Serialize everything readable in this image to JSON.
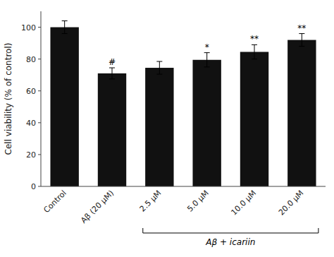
{
  "chart_data": {
    "type": "bar",
    "categories": [
      "Control",
      "Aβ (20 μM)",
      "2.5 μM",
      "5.0 μM",
      "10.0 μM",
      "20.0 μM"
    ],
    "values": [
      100.0,
      71.0,
      74.5,
      79.5,
      84.5,
      92.0
    ],
    "errors": [
      4.0,
      3.5,
      4.0,
      4.5,
      4.5,
      4.0
    ],
    "color": "#111111",
    "ylim": [
      0,
      110
    ],
    "yticks": [
      0,
      20,
      40,
      60,
      80,
      100
    ],
    "ylabel": "Cell viability (% of control)",
    "significance": [
      null,
      "#",
      null,
      "*",
      "**",
      "**"
    ],
    "bracket": {
      "label": "Aβ + icariin",
      "categories": [
        "2.5 μM",
        "20.0 μM"
      ]
    },
    "grid": false
  }
}
